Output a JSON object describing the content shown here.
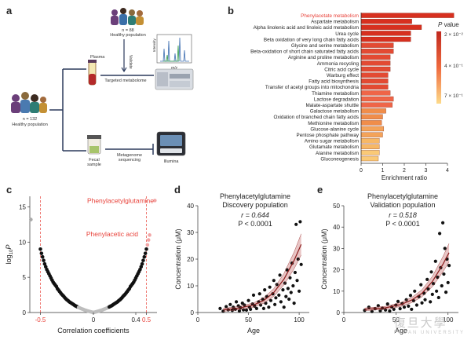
{
  "panel_labels": {
    "a": "a",
    "b": "b",
    "c": "c",
    "d": "d",
    "e": "e"
  },
  "panel_a": {
    "left_group_n": "n = 132",
    "left_group_label": "Healthy population",
    "top_group_n": "n = 88",
    "top_group_label": "Healthy population",
    "plasma_label": "Plasma",
    "validate_label": "Validate",
    "targeted_label": "Targeted metabolome",
    "intensity_label": "Intensity",
    "mz_label": "m/z",
    "fecal_label": "Fecal\nsample",
    "metagenome_label": "Metagenome\nsequencing",
    "illumina_label": "Illumina"
  },
  "panel_b": {
    "legend_title": "P value",
    "legend_ticks": [
      "2 × 10⁻²",
      "4 × 10⁻¹",
      "7 × 10⁻¹"
    ],
    "highlight_color": "#e8423a"
  },
  "panel_c": {
    "highlight_1": "Phenylacetylglutamine",
    "highlight_2": "Phenylacetic acid"
  },
  "panel_d": {
    "title_1": "Phenylacetylglutamine",
    "title_2": "Discovery population",
    "r_text": "r = 0.644",
    "p_text": "P < 0.0001"
  },
  "panel_e": {
    "title_1": "Phenylacetylglutamine",
    "title_2": "Validation population",
    "r_text": "r = 0.518",
    "p_text": "P < 0.0001"
  },
  "watermark": {
    "text": "復旦大學",
    "sub": "FUDAN UNIVERSITY"
  },
  "chart_data": [
    {
      "id": "b",
      "type": "bar",
      "orientation": "horizontal",
      "xlabel": "Enrichment ratio",
      "xlim": [
        0,
        4
      ],
      "xticks": [
        0,
        1,
        2,
        3,
        4
      ],
      "categories": [
        "Phenylacetate metabolism",
        "Aspartate metabolism",
        "Alpha linolenic acid and linoleic acid metabolism",
        "Urea cycle",
        "Beta oxidation of very long chain fatty acids",
        "Glycine and serine metabolism",
        "Beta-oxidation of short chain saturated fatty acids",
        "Arginine and proline metabolism",
        "Ammonia recycling",
        "Citric acid cycle",
        "Warburg effect",
        "Fatty acid biosynthesis",
        "Transfer of acetyl groups into mitochondria",
        "Thiamine metabolism",
        "Lactose degradation",
        "Malate-aspartate shuttle",
        "Galactose metabolism",
        "Oxidation of branched chain fatty acids",
        "Methionine metabolism",
        "Glucose-alanine cycle",
        "Pentose phosphate pathway",
        "Amino sugar metabolism",
        "Glutamate metabolism",
        "Alanine metabolism",
        "Gluconeogenesis"
      ],
      "values": [
        4.3,
        2.35,
        2.8,
        2.3,
        2.3,
        1.5,
        1.5,
        1.35,
        1.35,
        1.35,
        1.25,
        1.25,
        1.25,
        1.35,
        1.5,
        1.45,
        1.15,
        1.0,
        0.95,
        1.05,
        1.0,
        0.85,
        0.85,
        0.85,
        0.8
      ],
      "colors": [
        "#d7301f",
        "#d7301f",
        "#d7301f",
        "#d7301f",
        "#d7301f",
        "#e34a33",
        "#e34a33",
        "#e34a33",
        "#e34a33",
        "#e34a33",
        "#e34a33",
        "#e34a33",
        "#e34a33",
        "#ef6548",
        "#ef6548",
        "#ef6548",
        "#f08d4a",
        "#f08d4a",
        "#f08d4a",
        "#f4a359",
        "#f4a359",
        "#f7b865",
        "#f7b865",
        "#fac976",
        "#fac976"
      ]
    },
    {
      "id": "c",
      "type": "scatter",
      "xlabel": "Correlation coefficients",
      "ylabel": "log10P",
      "xlim": [
        -0.6,
        0.6
      ],
      "ylim": [
        0,
        16.5
      ],
      "xticks": [
        -0.5,
        0,
        0.4,
        0.5
      ],
      "yticks": [
        0,
        5,
        10,
        15
      ],
      "dashed_x": [
        -0.5,
        0.5
      ],
      "points": [
        [
          -0.59,
          13.2
        ],
        [
          -0.5,
          9.0
        ],
        [
          -0.49,
          8.4
        ],
        [
          -0.48,
          7.9
        ],
        [
          -0.47,
          7.4
        ],
        [
          -0.46,
          6.9
        ],
        [
          -0.45,
          6.5
        ],
        [
          -0.44,
          6.1
        ],
        [
          -0.43,
          5.8
        ],
        [
          -0.42,
          5.5
        ],
        [
          -0.41,
          5.2
        ],
        [
          -0.4,
          4.9
        ],
        [
          -0.39,
          4.6
        ],
        [
          -0.38,
          4.3
        ],
        [
          -0.37,
          4.1
        ],
        [
          -0.36,
          3.9
        ],
        [
          -0.35,
          3.7
        ],
        [
          -0.34,
          3.4
        ],
        [
          -0.33,
          3.2
        ],
        [
          -0.32,
          3.0
        ],
        [
          -0.31,
          2.8
        ],
        [
          -0.3,
          2.6
        ],
        [
          -0.29,
          2.45
        ],
        [
          -0.28,
          2.3
        ],
        [
          -0.27,
          2.1
        ],
        [
          -0.26,
          1.95
        ],
        [
          -0.25,
          1.8
        ],
        [
          -0.24,
          1.7
        ],
        [
          -0.23,
          1.55
        ],
        [
          -0.22,
          1.45
        ],
        [
          -0.21,
          1.35
        ],
        [
          -0.2,
          1.25
        ],
        [
          -0.19,
          1.15
        ],
        [
          -0.18,
          1.05
        ],
        [
          -0.17,
          0.95
        ],
        [
          -0.16,
          0.88
        ],
        [
          -0.15,
          0.8
        ],
        [
          -0.14,
          0.72
        ],
        [
          -0.13,
          0.65
        ],
        [
          -0.12,
          0.58
        ],
        [
          -0.11,
          0.52
        ],
        [
          -0.1,
          0.47
        ],
        [
          -0.09,
          0.4
        ],
        [
          -0.08,
          0.34
        ],
        [
          -0.07,
          0.3
        ],
        [
          -0.06,
          0.25
        ],
        [
          -0.05,
          0.2
        ],
        [
          -0.04,
          0.16
        ],
        [
          -0.03,
          0.12
        ],
        [
          -0.02,
          0.08
        ],
        [
          -0.01,
          0.04
        ],
        [
          0.0,
          0.02
        ],
        [
          0.01,
          0.04
        ],
        [
          0.02,
          0.08
        ],
        [
          0.03,
          0.12
        ],
        [
          0.04,
          0.16
        ],
        [
          0.05,
          0.2
        ],
        [
          0.06,
          0.25
        ],
        [
          0.07,
          0.3
        ],
        [
          0.08,
          0.34
        ],
        [
          0.09,
          0.4
        ],
        [
          0.1,
          0.47
        ],
        [
          0.11,
          0.52
        ],
        [
          0.12,
          0.58
        ],
        [
          0.13,
          0.65
        ],
        [
          0.14,
          0.72
        ],
        [
          0.15,
          0.8
        ],
        [
          0.16,
          0.88
        ],
        [
          0.17,
          0.95
        ],
        [
          0.18,
          1.05
        ],
        [
          0.19,
          1.15
        ],
        [
          0.2,
          1.25
        ],
        [
          0.21,
          1.35
        ],
        [
          0.22,
          1.45
        ],
        [
          0.23,
          1.55
        ],
        [
          0.24,
          1.7
        ],
        [
          0.25,
          1.8
        ],
        [
          0.26,
          1.95
        ],
        [
          0.27,
          2.1
        ],
        [
          0.28,
          2.3
        ],
        [
          0.29,
          2.45
        ],
        [
          0.3,
          2.6
        ],
        [
          0.31,
          2.8
        ],
        [
          0.32,
          3.0
        ],
        [
          0.33,
          3.2
        ],
        [
          0.34,
          3.4
        ],
        [
          0.35,
          3.7
        ],
        [
          0.36,
          3.9
        ],
        [
          0.37,
          4.1
        ],
        [
          0.38,
          4.3
        ],
        [
          0.39,
          4.6
        ],
        [
          0.4,
          4.9
        ],
        [
          0.41,
          5.2
        ],
        [
          0.42,
          5.5
        ],
        [
          0.43,
          5.8
        ],
        [
          0.44,
          6.1
        ],
        [
          0.45,
          6.5
        ],
        [
          0.46,
          6.9
        ],
        [
          0.47,
          7.4
        ],
        [
          0.48,
          7.9
        ],
        [
          0.49,
          8.4
        ],
        [
          0.5,
          9.0
        ],
        [
          0.51,
          9.6
        ],
        [
          0.52,
          10.3
        ],
        [
          0.53,
          11.0
        ],
        [
          0.58,
          15.9
        ]
      ]
    },
    {
      "id": "d",
      "type": "scatter",
      "xlabel": "Age",
      "ylabel": "Concentration (μM)",
      "xlim": [
        0,
        110
      ],
      "ylim": [
        0,
        40
      ],
      "xticks": [
        0,
        50,
        100
      ],
      "yticks": [
        0,
        10,
        20,
        30,
        40
      ],
      "points": [
        [
          22,
          1.5
        ],
        [
          25,
          0.5
        ],
        [
          28,
          2.2
        ],
        [
          30,
          1.0
        ],
        [
          32,
          3.0
        ],
        [
          34,
          0.8
        ],
        [
          35,
          2.0
        ],
        [
          37,
          1.2
        ],
        [
          38,
          4.0
        ],
        [
          40,
          2.5
        ],
        [
          41,
          0.6
        ],
        [
          42,
          1.8
        ],
        [
          44,
          3.5
        ],
        [
          45,
          1.0
        ],
        [
          46,
          2.8
        ],
        [
          48,
          0.9
        ],
        [
          50,
          4.5
        ],
        [
          51,
          2.0
        ],
        [
          52,
          1.2
        ],
        [
          54,
          3.2
        ],
        [
          55,
          6.5
        ],
        [
          56,
          2.4
        ],
        [
          58,
          1.5
        ],
        [
          60,
          4.0
        ],
        [
          61,
          7.0
        ],
        [
          62,
          2.8
        ],
        [
          64,
          5.0
        ],
        [
          65,
          1.5
        ],
        [
          66,
          8.5
        ],
        [
          67,
          3.5
        ],
        [
          68,
          6.0
        ],
        [
          70,
          2.0
        ],
        [
          71,
          9.5
        ],
        [
          72,
          4.5
        ],
        [
          74,
          7.0
        ],
        [
          75,
          12.0
        ],
        [
          76,
          3.0
        ],
        [
          77,
          5.5
        ],
        [
          78,
          10.5
        ],
        [
          80,
          6.5
        ],
        [
          81,
          14.0
        ],
        [
          82,
          4.0
        ],
        [
          84,
          8.5
        ],
        [
          85,
          2.0
        ],
        [
          86,
          11.0
        ],
        [
          87,
          6.0
        ],
        [
          88,
          16.0
        ],
        [
          89,
          9.0
        ],
        [
          90,
          5.0
        ],
        [
          91,
          13.0
        ],
        [
          92,
          7.5
        ],
        [
          93,
          18.5
        ],
        [
          94,
          10.0
        ],
        [
          95,
          3.5
        ],
        [
          96,
          15.0
        ],
        [
          97,
          33.0
        ],
        [
          98,
          12.0
        ],
        [
          99,
          20.0
        ],
        [
          100,
          8.0
        ],
        [
          101,
          34.0
        ],
        [
          102,
          18.0
        ]
      ],
      "fit": [
        [
          25,
          1.0
        ],
        [
          40,
          1.6
        ],
        [
          55,
          2.8
        ],
        [
          65,
          4.5
        ],
        [
          75,
          7.5
        ],
        [
          85,
          12.5
        ],
        [
          95,
          19.5
        ],
        [
          102,
          25.5
        ]
      ]
    },
    {
      "id": "e",
      "type": "scatter",
      "xlabel": "Age",
      "ylabel": "Concentration (μM)",
      "xlim": [
        0,
        110
      ],
      "ylim": [
        0,
        50
      ],
      "xticks": [
        0,
        50,
        100
      ],
      "yticks": [
        0,
        10,
        20,
        30,
        40,
        50
      ],
      "points": [
        [
          20,
          1.0
        ],
        [
          24,
          2.5
        ],
        [
          27,
          0.5
        ],
        [
          30,
          1.8
        ],
        [
          33,
          3.2
        ],
        [
          35,
          0.8
        ],
        [
          37,
          2.0
        ],
        [
          40,
          1.2
        ],
        [
          42,
          4.0
        ],
        [
          44,
          0.7
        ],
        [
          46,
          2.6
        ],
        [
          48,
          1.5
        ],
        [
          50,
          3.5
        ],
        [
          52,
          5.2
        ],
        [
          54,
          1.8
        ],
        [
          56,
          4.2
        ],
        [
          58,
          2.5
        ],
        [
          60,
          6.0
        ],
        [
          62,
          3.0
        ],
        [
          64,
          8.0
        ],
        [
          65,
          1.5
        ],
        [
          67,
          5.5
        ],
        [
          68,
          10.0
        ],
        [
          70,
          3.5
        ],
        [
          72,
          7.5
        ],
        [
          74,
          13.0
        ],
        [
          75,
          4.5
        ],
        [
          77,
          9.0
        ],
        [
          78,
          6.0
        ],
        [
          80,
          15.5
        ],
        [
          81,
          11.0
        ],
        [
          83,
          5.0
        ],
        [
          84,
          19.0
        ],
        [
          85,
          8.5
        ],
        [
          86,
          13.5
        ],
        [
          88,
          24.0
        ],
        [
          89,
          10.0
        ],
        [
          90,
          16.5
        ],
        [
          91,
          7.0
        ],
        [
          92,
          37.0
        ],
        [
          93,
          21.0
        ],
        [
          94,
          12.5
        ],
        [
          95,
          42.0
        ],
        [
          96,
          18.0
        ],
        [
          97,
          30.0
        ],
        [
          98,
          9.5
        ],
        [
          99,
          25.0
        ],
        [
          100,
          14.0
        ],
        [
          101,
          22.0
        ]
      ],
      "fit": [
        [
          20,
          1.5
        ],
        [
          40,
          2.2
        ],
        [
          55,
          3.8
        ],
        [
          65,
          5.8
        ],
        [
          75,
          9.0
        ],
        [
          85,
          14.5
        ],
        [
          95,
          22.5
        ],
        [
          101,
          28.0
        ]
      ]
    }
  ]
}
